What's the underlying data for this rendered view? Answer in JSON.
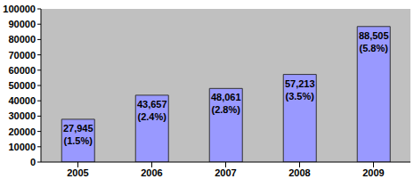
{
  "chart_data": {
    "type": "bar",
    "categories": [
      "2005",
      "2006",
      "2007",
      "2008",
      "2009"
    ],
    "values": [
      27945,
      43657,
      48061,
      57213,
      88505
    ],
    "value_labels": [
      [
        "27,945",
        "(1.5%)"
      ],
      [
        "43,657",
        "(2.4%)"
      ],
      [
        "48,061",
        "(2.8%)"
      ],
      [
        "57,213",
        "(3.5%)"
      ],
      [
        "88,505",
        "(5.8%)"
      ]
    ],
    "color": "#9999ff",
    "ylim": [
      0,
      100000
    ],
    "yticks": [
      0,
      10000,
      20000,
      30000,
      40000,
      50000,
      60000,
      70000,
      80000,
      90000,
      100000
    ],
    "grid": false,
    "data_labels": true
  }
}
